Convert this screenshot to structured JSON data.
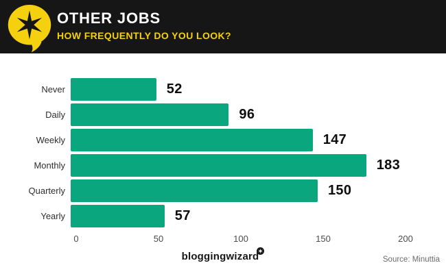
{
  "header": {
    "title": "OTHER JOBS",
    "subtitle": "HOW FREQUENTLY DO YOU LOOK?"
  },
  "chart_data": {
    "type": "bar",
    "orientation": "horizontal",
    "title": "OTHER JOBS",
    "subtitle": "HOW FREQUENTLY DO YOU LOOK?",
    "categories": [
      "Never",
      "Daily",
      "Weekly",
      "Monthly",
      "Quarterly",
      "Yearly"
    ],
    "values": [
      52,
      96,
      147,
      183,
      150,
      57
    ],
    "xlim": [
      0,
      200
    ],
    "x_ticks": [
      0,
      50,
      100,
      150,
      200
    ],
    "grid": "off",
    "legend": "none",
    "value_labels": "right-of-bar"
  },
  "footer": {
    "brand": "bloggingwizard",
    "source": "Source: Minuttia"
  },
  "colors": {
    "header_bg": "#161616",
    "accent_yellow": "#f5d00e",
    "bar_green": "#0aa67e",
    "value_text": "#0d0d0d",
    "source_text": "#6b6b6b"
  },
  "icons": {
    "logo": "speech-bubble-star-icon",
    "brand_badge": "star-badge-icon"
  }
}
